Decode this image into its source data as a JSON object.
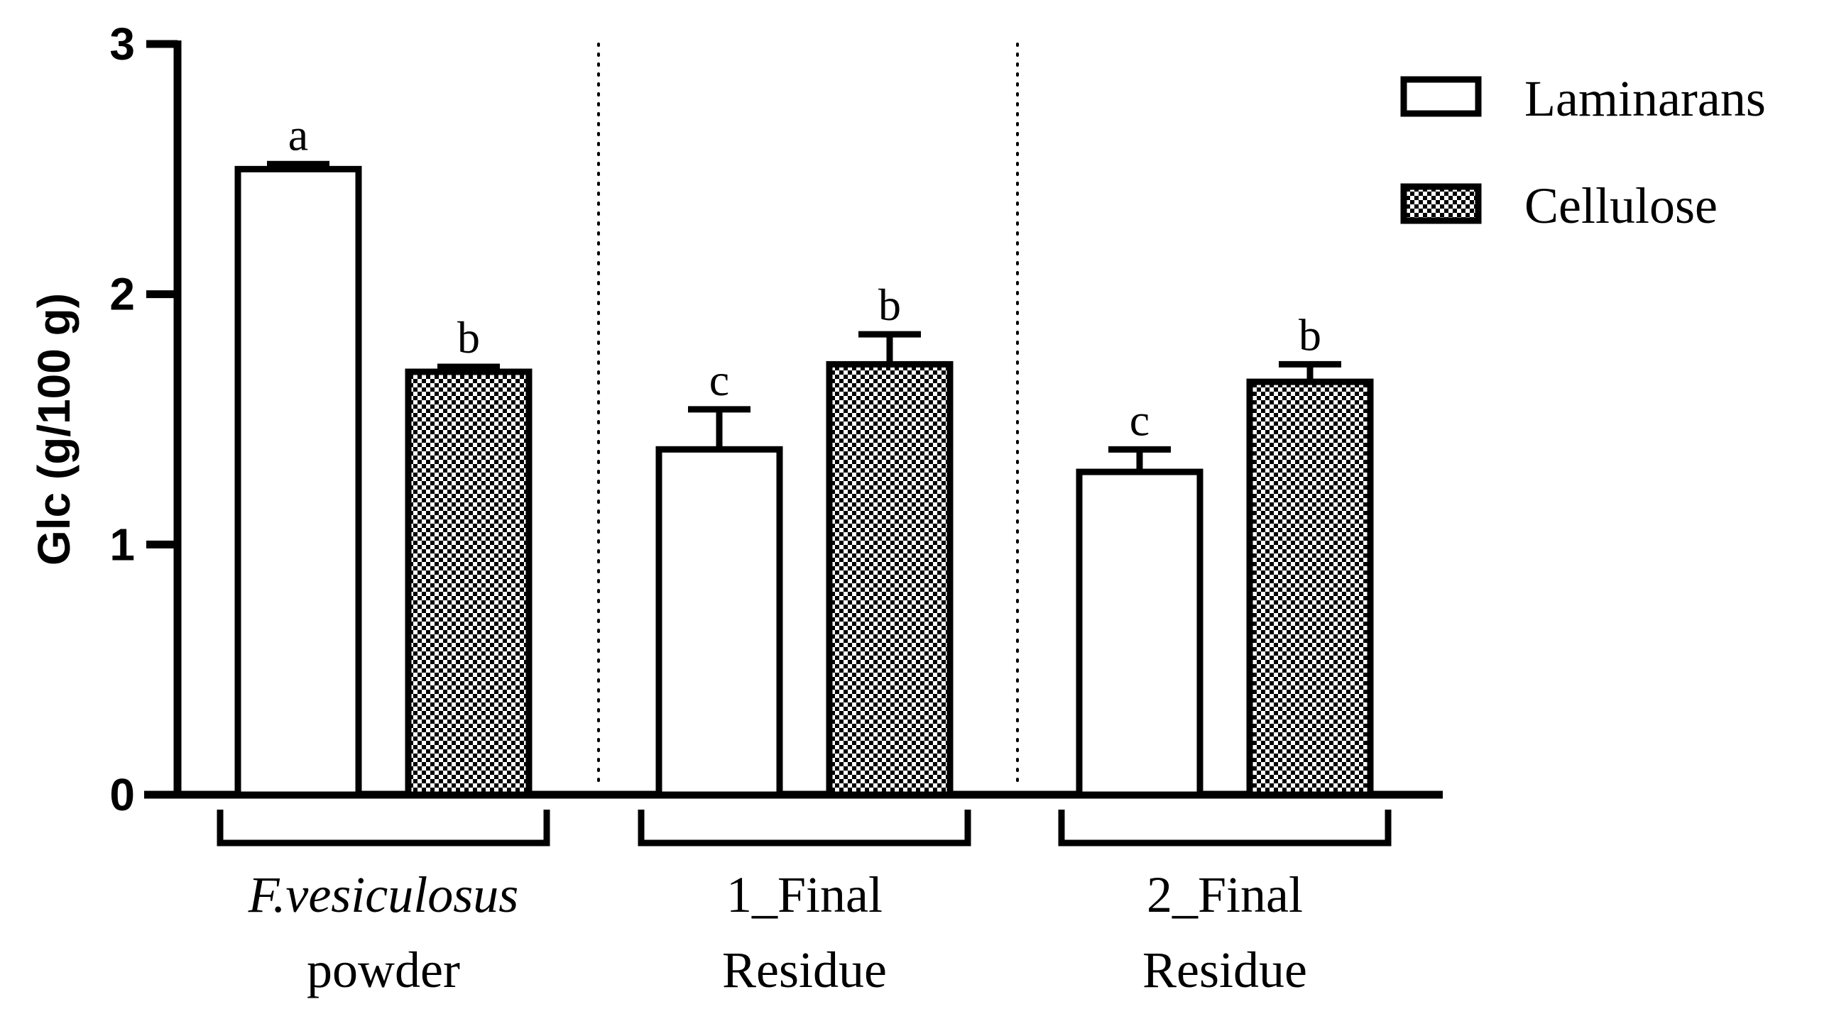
{
  "chart_data": {
    "type": "bar",
    "ylabel": "Glc (g/100 g)",
    "ylim": [
      0,
      3
    ],
    "yticks": [
      "0",
      "1",
      "2",
      "3"
    ],
    "legend_position": "top-right",
    "groups": [
      {
        "label_lines": [
          "F.vesiculosus",
          "powder"
        ],
        "italic_first_line": true
      },
      {
        "label_lines": [
          "1_Final",
          "Residue"
        ],
        "italic_first_line": false
      },
      {
        "label_lines": [
          "2_Final",
          "Residue"
        ],
        "italic_first_line": false
      }
    ],
    "series": [
      {
        "name": "Laminarans",
        "fill": "white",
        "values": [
          2.5,
          1.38,
          1.29
        ],
        "errors": [
          0.02,
          0.16,
          0.09
        ],
        "letters": [
          "a",
          "c",
          "c"
        ]
      },
      {
        "name": "Cellulose",
        "fill": "checker",
        "values": [
          1.69,
          1.72,
          1.65
        ],
        "errors": [
          0.02,
          0.12,
          0.07
        ],
        "letters": [
          "b",
          "b",
          "b"
        ]
      }
    ],
    "group_separators": "dotted",
    "colors": {
      "line": "#000000",
      "checker_dark": "#000000",
      "checker_light": "#ffffff"
    }
  }
}
